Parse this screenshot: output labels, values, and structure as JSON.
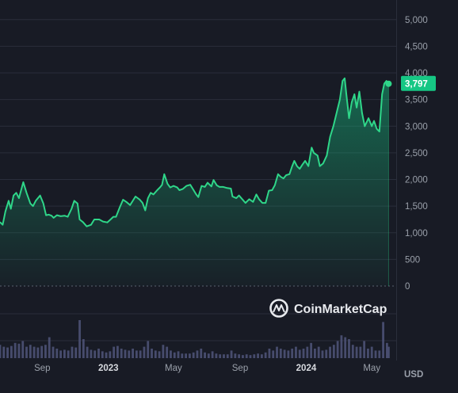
{
  "chart_data": {
    "type": "area",
    "y_ticks": [
      "5,000",
      "4,500",
      "4,000",
      "3,500",
      "3,000",
      "2,500",
      "2,000",
      "1,500",
      "1,000",
      "500",
      "0"
    ],
    "y_tick_values": [
      5000,
      4500,
      4000,
      3500,
      3000,
      2500,
      2000,
      1500,
      1000,
      500,
      0
    ],
    "ylim": [
      0,
      5250
    ],
    "x_ticks": [
      {
        "label": "Sep",
        "date": "2022-09-01",
        "bold": false
      },
      {
        "label": "2023",
        "date": "2023-01-01",
        "bold": true
      },
      {
        "label": "May",
        "date": "2023-05-01",
        "bold": false
      },
      {
        "label": "Sep",
        "date": "2023-09-01",
        "bold": false
      },
      {
        "label": "2024",
        "date": "2024-01-01",
        "bold": true
      },
      {
        "label": "May",
        "date": "2024-05-01",
        "bold": false
      }
    ],
    "xlim": [
      "2022-06-15",
      "2024-06-15"
    ],
    "currency": "USD",
    "last_price_label": "3,797",
    "watermark": "CoinMarketCap",
    "colors": {
      "line": "#2fd689",
      "label_bg": "#16c784",
      "grid": "#2a2e3b",
      "volume": "#4c5275"
    },
    "series": [
      {
        "values": [
          [
            "2022-06-15",
            1200
          ],
          [
            "2022-06-20",
            1150
          ],
          [
            "2022-06-25",
            1400
          ],
          [
            "2022-07-01",
            1600
          ],
          [
            "2022-07-05",
            1450
          ],
          [
            "2022-07-10",
            1700
          ],
          [
            "2022-07-15",
            1750
          ],
          [
            "2022-07-20",
            1650
          ],
          [
            "2022-07-28",
            1950
          ],
          [
            "2022-08-03",
            1750
          ],
          [
            "2022-08-10",
            1550
          ],
          [
            "2022-08-15",
            1500
          ],
          [
            "2022-08-20",
            1600
          ],
          [
            "2022-08-28",
            1700
          ],
          [
            "2022-09-03",
            1550
          ],
          [
            "2022-09-08",
            1330
          ],
          [
            "2022-09-13",
            1340
          ],
          [
            "2022-09-18",
            1320
          ],
          [
            "2022-09-22",
            1280
          ],
          [
            "2022-09-28",
            1330
          ],
          [
            "2022-10-05",
            1310
          ],
          [
            "2022-10-12",
            1320
          ],
          [
            "2022-10-18",
            1300
          ],
          [
            "2022-10-25",
            1450
          ],
          [
            "2022-10-30",
            1600
          ],
          [
            "2022-11-05",
            1550
          ],
          [
            "2022-11-09",
            1250
          ],
          [
            "2022-11-15",
            1200
          ],
          [
            "2022-11-22",
            1120
          ],
          [
            "2022-11-30",
            1150
          ],
          [
            "2022-12-06",
            1250
          ],
          [
            "2022-12-15",
            1250
          ],
          [
            "2022-12-22",
            1210
          ],
          [
            "2022-12-30",
            1195
          ],
          [
            "2023-01-05",
            1250
          ],
          [
            "2023-01-10",
            1300
          ],
          [
            "2023-01-15",
            1300
          ],
          [
            "2023-01-22",
            1480
          ],
          [
            "2023-01-28",
            1620
          ],
          [
            "2023-02-03",
            1580
          ],
          [
            "2023-02-10",
            1520
          ],
          [
            "2023-02-15",
            1600
          ],
          [
            "2023-02-20",
            1680
          ],
          [
            "2023-02-28",
            1620
          ],
          [
            "2023-03-05",
            1560
          ],
          [
            "2023-03-10",
            1420
          ],
          [
            "2023-03-15",
            1650
          ],
          [
            "2023-03-20",
            1750
          ],
          [
            "2023-03-25",
            1720
          ],
          [
            "2023-04-01",
            1800
          ],
          [
            "2023-04-06",
            1850
          ],
          [
            "2023-04-10",
            1900
          ],
          [
            "2023-04-14",
            2100
          ],
          [
            "2023-04-20",
            1920
          ],
          [
            "2023-04-25",
            1850
          ],
          [
            "2023-05-01",
            1880
          ],
          [
            "2023-05-08",
            1850
          ],
          [
            "2023-05-12",
            1800
          ],
          [
            "2023-05-18",
            1820
          ],
          [
            "2023-05-25",
            1880
          ],
          [
            "2023-06-01",
            1900
          ],
          [
            "2023-06-06",
            1820
          ],
          [
            "2023-06-12",
            1720
          ],
          [
            "2023-06-16",
            1670
          ],
          [
            "2023-06-22",
            1880
          ],
          [
            "2023-06-28",
            1860
          ],
          [
            "2023-07-03",
            1940
          ],
          [
            "2023-07-10",
            1870
          ],
          [
            "2023-07-14",
            1990
          ],
          [
            "2023-07-20",
            1890
          ],
          [
            "2023-07-25",
            1860
          ],
          [
            "2023-08-01",
            1860
          ],
          [
            "2023-08-08",
            1840
          ],
          [
            "2023-08-15",
            1830
          ],
          [
            "2023-08-18",
            1680
          ],
          [
            "2023-08-25",
            1650
          ],
          [
            "2023-08-30",
            1700
          ],
          [
            "2023-09-05",
            1630
          ],
          [
            "2023-09-11",
            1560
          ],
          [
            "2023-09-18",
            1630
          ],
          [
            "2023-09-25",
            1580
          ],
          [
            "2023-10-01",
            1720
          ],
          [
            "2023-10-06",
            1630
          ],
          [
            "2023-10-12",
            1560
          ],
          [
            "2023-10-18",
            1560
          ],
          [
            "2023-10-24",
            1790
          ],
          [
            "2023-10-30",
            1800
          ],
          [
            "2023-11-04",
            1890
          ],
          [
            "2023-11-10",
            2100
          ],
          [
            "2023-11-15",
            2050
          ],
          [
            "2023-11-20",
            2020
          ],
          [
            "2023-11-25",
            2080
          ],
          [
            "2023-12-01",
            2100
          ],
          [
            "2023-12-06",
            2250
          ],
          [
            "2023-12-10",
            2350
          ],
          [
            "2023-12-15",
            2250
          ],
          [
            "2023-12-20",
            2200
          ],
          [
            "2023-12-25",
            2280
          ],
          [
            "2023-12-30",
            2350
          ],
          [
            "2024-01-05",
            2250
          ],
          [
            "2024-01-11",
            2600
          ],
          [
            "2024-01-15",
            2500
          ],
          [
            "2024-01-22",
            2450
          ],
          [
            "2024-01-26",
            2250
          ],
          [
            "2024-02-01",
            2300
          ],
          [
            "2024-02-08",
            2450
          ],
          [
            "2024-02-14",
            2800
          ],
          [
            "2024-02-20",
            3000
          ],
          [
            "2024-02-26",
            3250
          ],
          [
            "2024-03-03",
            3500
          ],
          [
            "2024-03-08",
            3850
          ],
          [
            "2024-03-12",
            3900
          ],
          [
            "2024-03-15",
            3600
          ],
          [
            "2024-03-20",
            3150
          ],
          [
            "2024-03-25",
            3450
          ],
          [
            "2024-03-30",
            3600
          ],
          [
            "2024-04-03",
            3350
          ],
          [
            "2024-04-08",
            3650
          ],
          [
            "2024-04-13",
            3250
          ],
          [
            "2024-04-18",
            3000
          ],
          [
            "2024-04-25",
            3150
          ],
          [
            "2024-05-01",
            3000
          ],
          [
            "2024-05-05",
            3100
          ],
          [
            "2024-05-10",
            2950
          ],
          [
            "2024-05-15",
            2900
          ],
          [
            "2024-05-20",
            3600
          ],
          [
            "2024-05-24",
            3800
          ],
          [
            "2024-05-28",
            3850
          ],
          [
            "2024-06-01",
            3797
          ]
        ]
      }
    ],
    "volume": [
      [
        "2022-06-15",
        0.35
      ],
      [
        "2022-06-22",
        0.3
      ],
      [
        "2022-06-29",
        0.28
      ],
      [
        "2022-07-06",
        0.32
      ],
      [
        "2022-07-13",
        0.4
      ],
      [
        "2022-07-20",
        0.38
      ],
      [
        "2022-07-27",
        0.45
      ],
      [
        "2022-08-03",
        0.3
      ],
      [
        "2022-08-10",
        0.35
      ],
      [
        "2022-08-17",
        0.3
      ],
      [
        "2022-08-24",
        0.28
      ],
      [
        "2022-08-31",
        0.32
      ],
      [
        "2022-09-07",
        0.35
      ],
      [
        "2022-09-14",
        0.55
      ],
      [
        "2022-09-21",
        0.3
      ],
      [
        "2022-09-28",
        0.25
      ],
      [
        "2022-10-05",
        0.2
      ],
      [
        "2022-10-12",
        0.22
      ],
      [
        "2022-10-19",
        0.2
      ],
      [
        "2022-10-26",
        0.3
      ],
      [
        "2022-11-02",
        0.28
      ],
      [
        "2022-11-09",
        1.0
      ],
      [
        "2022-11-16",
        0.5
      ],
      [
        "2022-11-23",
        0.3
      ],
      [
        "2022-11-30",
        0.22
      ],
      [
        "2022-12-07",
        0.2
      ],
      [
        "2022-12-14",
        0.25
      ],
      [
        "2022-12-21",
        0.18
      ],
      [
        "2022-12-28",
        0.15
      ],
      [
        "2023-01-04",
        0.18
      ],
      [
        "2023-01-11",
        0.3
      ],
      [
        "2023-01-18",
        0.32
      ],
      [
        "2023-01-25",
        0.25
      ],
      [
        "2023-02-01",
        0.22
      ],
      [
        "2023-02-08",
        0.2
      ],
      [
        "2023-02-15",
        0.25
      ],
      [
        "2023-02-22",
        0.2
      ],
      [
        "2023-03-01",
        0.2
      ],
      [
        "2023-03-08",
        0.3
      ],
      [
        "2023-03-15",
        0.45
      ],
      [
        "2023-03-22",
        0.25
      ],
      [
        "2023-03-29",
        0.2
      ],
      [
        "2023-04-05",
        0.18
      ],
      [
        "2023-04-12",
        0.35
      ],
      [
        "2023-04-19",
        0.3
      ],
      [
        "2023-04-26",
        0.2
      ],
      [
        "2023-05-03",
        0.15
      ],
      [
        "2023-05-10",
        0.18
      ],
      [
        "2023-05-17",
        0.12
      ],
      [
        "2023-05-24",
        0.12
      ],
      [
        "2023-05-31",
        0.12
      ],
      [
        "2023-06-07",
        0.15
      ],
      [
        "2023-06-14",
        0.2
      ],
      [
        "2023-06-21",
        0.25
      ],
      [
        "2023-06-28",
        0.15
      ],
      [
        "2023-07-05",
        0.12
      ],
      [
        "2023-07-12",
        0.18
      ],
      [
        "2023-07-19",
        0.12
      ],
      [
        "2023-07-26",
        0.1
      ],
      [
        "2023-08-02",
        0.1
      ],
      [
        "2023-08-09",
        0.1
      ],
      [
        "2023-08-16",
        0.2
      ],
      [
        "2023-08-23",
        0.12
      ],
      [
        "2023-08-30",
        0.1
      ],
      [
        "2023-09-06",
        0.08
      ],
      [
        "2023-09-13",
        0.1
      ],
      [
        "2023-09-20",
        0.08
      ],
      [
        "2023-09-27",
        0.1
      ],
      [
        "2023-10-04",
        0.12
      ],
      [
        "2023-10-11",
        0.1
      ],
      [
        "2023-10-18",
        0.15
      ],
      [
        "2023-10-25",
        0.25
      ],
      [
        "2023-11-01",
        0.2
      ],
      [
        "2023-11-08",
        0.3
      ],
      [
        "2023-11-15",
        0.25
      ],
      [
        "2023-11-22",
        0.22
      ],
      [
        "2023-11-29",
        0.2
      ],
      [
        "2023-12-06",
        0.25
      ],
      [
        "2023-12-13",
        0.3
      ],
      [
        "2023-12-20",
        0.22
      ],
      [
        "2023-12-27",
        0.25
      ],
      [
        "2024-01-03",
        0.3
      ],
      [
        "2024-01-10",
        0.4
      ],
      [
        "2024-01-17",
        0.25
      ],
      [
        "2024-01-24",
        0.3
      ],
      [
        "2024-01-31",
        0.2
      ],
      [
        "2024-02-07",
        0.22
      ],
      [
        "2024-02-14",
        0.3
      ],
      [
        "2024-02-21",
        0.35
      ],
      [
        "2024-02-28",
        0.45
      ],
      [
        "2024-03-06",
        0.6
      ],
      [
        "2024-03-13",
        0.55
      ],
      [
        "2024-03-20",
        0.5
      ],
      [
        "2024-03-27",
        0.35
      ],
      [
        "2024-04-03",
        0.3
      ],
      [
        "2024-04-10",
        0.3
      ],
      [
        "2024-04-17",
        0.45
      ],
      [
        "2024-04-24",
        0.25
      ],
      [
        "2024-05-01",
        0.3
      ],
      [
        "2024-05-08",
        0.2
      ],
      [
        "2024-05-15",
        0.2
      ],
      [
        "2024-05-22",
        0.95
      ],
      [
        "2024-05-29",
        0.4
      ],
      [
        "2024-06-01",
        0.3
      ]
    ]
  }
}
